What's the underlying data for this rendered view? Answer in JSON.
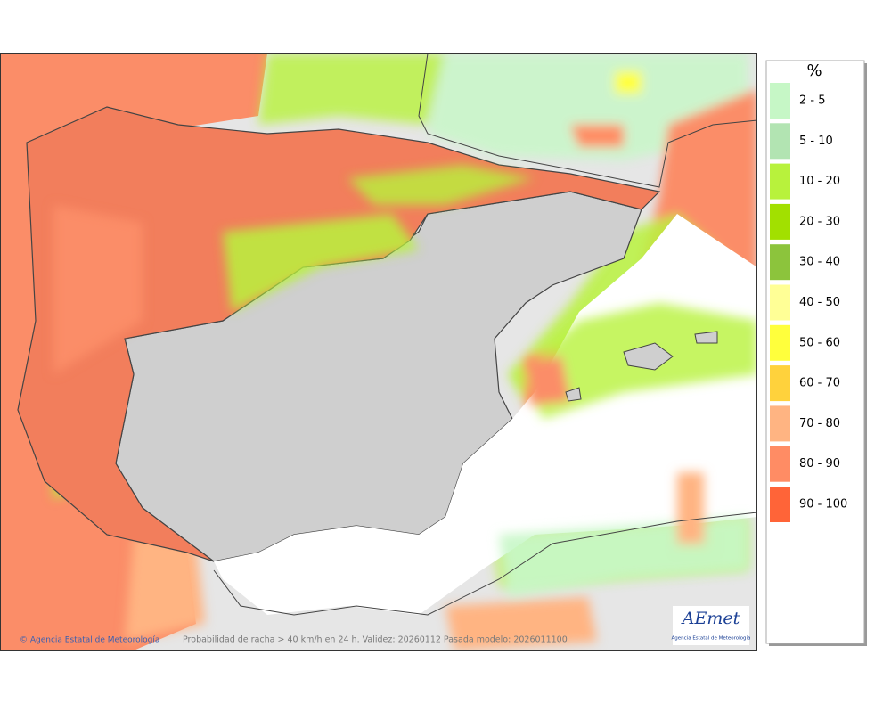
{
  "legend": {
    "title": "%",
    "items": [
      {
        "label": "2 - 5",
        "color": "#c6f7c6"
      },
      {
        "label": "5 - 10",
        "color": "#b2e4b2"
      },
      {
        "label": "10 - 20",
        "color": "#b8f23c"
      },
      {
        "label": "20 - 30",
        "color": "#a2e000"
      },
      {
        "label": "30 - 40",
        "color": "#8cc43c"
      },
      {
        "label": "40 - 50",
        "color": "#ffff96"
      },
      {
        "label": "50 - 60",
        "color": "#ffff3c"
      },
      {
        "label": "60 - 70",
        "color": "#ffd23c"
      },
      {
        "label": "70 - 80",
        "color": "#ffb482"
      },
      {
        "label": "80 - 90",
        "color": "#ff8c64"
      },
      {
        "label": "90 - 100",
        "color": "#ff6438"
      }
    ]
  },
  "footer": {
    "credit": "© Agencia Estatal de Meteorología",
    "caption": "Probabilidad de racha > 40 km/h en 24 h. Validez: 20260112 Pasada modelo: 2026011100"
  },
  "logo": {
    "name": "AEmet",
    "subtitle": "Agencia Estatal de Meteorología"
  }
}
